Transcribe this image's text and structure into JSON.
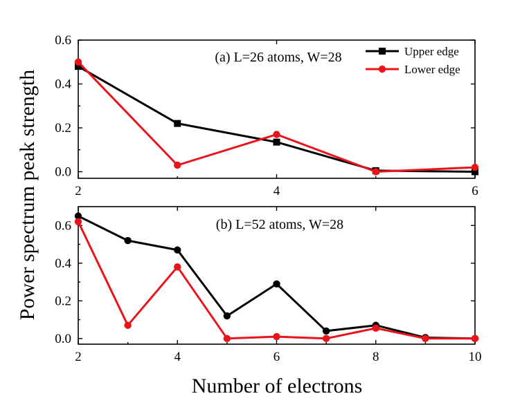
{
  "chart_data": [
    {
      "type": "line",
      "title": "(a) L=26 atoms, W=28",
      "xlabel": "Number of electrons",
      "ylabel": "Power spectrum peak strength",
      "xlim": [
        2,
        6
      ],
      "ylim": [
        -0.03,
        0.6
      ],
      "xticks": [
        2,
        4,
        6
      ],
      "yticks": [
        0.0,
        0.2,
        0.4,
        0.6
      ],
      "xtick_labels": [
        "2",
        "4",
        "6"
      ],
      "ytick_labels": [
        "0.0",
        "0.2",
        "0.4",
        "0.6"
      ],
      "legend_position": "top-right",
      "series": [
        {
          "name": "Upper edge",
          "color": "#000000",
          "marker": "square",
          "x": [
            2,
            3,
            4,
            5,
            6
          ],
          "y": [
            0.48,
            0.22,
            0.135,
            0.005,
            0.0
          ]
        },
        {
          "name": "Lower edge",
          "color": "#e8141a",
          "marker": "circle",
          "x": [
            2,
            3,
            4,
            5,
            6
          ],
          "y": [
            0.5,
            0.03,
            0.17,
            0.0,
            0.02
          ]
        }
      ]
    },
    {
      "type": "line",
      "title": "(b) L=52 atoms, W=28",
      "xlabel": "Number of electrons",
      "ylabel": "Power spectrum peak strength",
      "xlim": [
        2,
        10
      ],
      "ylim": [
        -0.03,
        0.7
      ],
      "xticks": [
        2,
        4,
        6,
        8,
        10
      ],
      "yticks": [
        0.0,
        0.2,
        0.4,
        0.6
      ],
      "xtick_labels": [
        "2",
        "4",
        "6",
        "8",
        "10"
      ],
      "ytick_labels": [
        "0.0",
        "0.2",
        "0.4",
        "0.6"
      ],
      "series": [
        {
          "name": "Upper edge",
          "color": "#000000",
          "marker": "circle",
          "x": [
            2,
            3,
            4,
            5,
            6,
            7,
            8,
            9,
            10
          ],
          "y": [
            0.65,
            0.52,
            0.47,
            0.12,
            0.29,
            0.04,
            0.07,
            0.005,
            0.0
          ]
        },
        {
          "name": "Lower edge",
          "color": "#e8141a",
          "marker": "circle",
          "x": [
            2,
            3,
            4,
            5,
            6,
            7,
            8,
            9,
            10
          ],
          "y": [
            0.62,
            0.07,
            0.38,
            0.0,
            0.01,
            0.0,
            0.055,
            0.0,
            0.0
          ]
        }
      ]
    }
  ],
  "labels": {
    "xlabel": "Number of electrons",
    "ylabel": "Power spectrum peak strength"
  }
}
